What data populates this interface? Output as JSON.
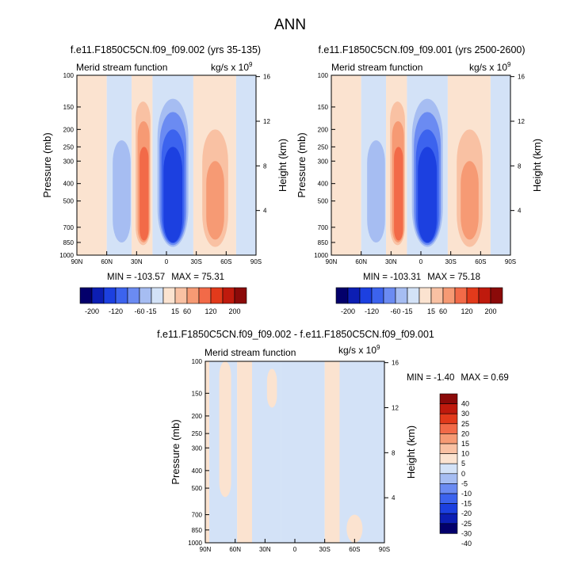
{
  "page_title": "ANN",
  "colors": {
    "below_zero": [
      "#03006b",
      "#0c1eb3",
      "#1c40e0",
      "#3c63ee",
      "#6b8bf2",
      "#a6bdf2",
      "#d3e2f7"
    ],
    "above_zero": [
      "#fbe3d0",
      "#f9c1a3",
      "#f69a74",
      "#f26a48",
      "#e23a1b",
      "#bf1a0d",
      "#8b0a09"
    ],
    "frame": "#000000"
  },
  "chart_data": [
    {
      "type": "heatmap",
      "variant": "contour",
      "title": "f.e11.F1850C5CN.f09_f09.002 (yrs 35-135)",
      "subtitle_left": "Merid stream function",
      "subtitle_right": "kg/s x 10",
      "units_exponent": "9",
      "xlabel": "",
      "ylabel": "Pressure (mb)",
      "ylabel_right": "Height (km)",
      "x_ticks": [
        "90N",
        "60N",
        "30N",
        "0",
        "30S",
        "60S",
        "90S"
      ],
      "x_range": [
        90,
        -90
      ],
      "y_ticks": [
        100,
        150,
        200,
        250,
        300,
        400,
        500,
        700,
        850,
        1000
      ],
      "y_range": [
        100,
        1000
      ],
      "y_scale": "log",
      "y_right_ticks": [
        4,
        8,
        12,
        16
      ],
      "stats": {
        "min_label": "MIN = -103.57",
        "max_label": "MAX = 75.31",
        "min": -103.57,
        "max": 75.31
      },
      "contour_levels": [
        -200,
        -160,
        -120,
        -80,
        -60,
        -40,
        -15,
        0,
        15,
        40,
        60,
        80,
        120,
        160,
        200
      ],
      "cells": [
        {
          "lat": [
            90,
            60
          ],
          "p": [
            100,
            1000
          ],
          "value": 5
        },
        {
          "lat": [
            60,
            35
          ],
          "p": [
            100,
            1000
          ],
          "value": -5
        },
        {
          "lat": [
            54,
            36
          ],
          "p": [
            230,
            850
          ],
          "value": -20
        },
        {
          "lat": [
            35,
            14
          ],
          "p": [
            100,
            1000
          ],
          "value": 5
        },
        {
          "lat": [
            31,
            16
          ],
          "p": [
            140,
            880
          ],
          "value": 20
        },
        {
          "lat": [
            29,
            17
          ],
          "p": [
            180,
            850
          ],
          "value": 50
        },
        {
          "lat": [
            27,
            18
          ],
          "p": [
            250,
            830
          ],
          "value": 70
        },
        {
          "lat": [
            14,
            -27
          ],
          "p": [
            100,
            1000
          ],
          "value": -5
        },
        {
          "lat": [
            9,
            -22
          ],
          "p": [
            135,
            900
          ],
          "value": -20
        },
        {
          "lat": [
            7,
            -20
          ],
          "p": [
            160,
            880
          ],
          "value": -50
        },
        {
          "lat": [
            5,
            -18
          ],
          "p": [
            200,
            860
          ],
          "value": -70
        },
        {
          "lat": [
            3,
            -16
          ],
          "p": [
            250,
            850
          ],
          "value": -90
        },
        {
          "lat": [
            1,
            -14
          ],
          "p": [
            560,
            850
          ],
          "value": -103
        },
        {
          "lat": [
            -27,
            -70
          ],
          "p": [
            100,
            1000
          ],
          "value": 5
        },
        {
          "lat": [
            -36,
            -62
          ],
          "p": [
            200,
            900
          ],
          "value": 20
        },
        {
          "lat": [
            -40,
            -58
          ],
          "p": [
            300,
            820
          ],
          "value": 40
        },
        {
          "lat": [
            -70,
            -90
          ],
          "p": [
            100,
            1000
          ],
          "value": -3
        }
      ]
    },
    {
      "type": "heatmap",
      "variant": "contour",
      "title": "f.e11.F1850C5CN.f09_f09.001 (yrs 2500-2600)",
      "subtitle_left": "Merid stream function",
      "subtitle_right": "kg/s x 10",
      "units_exponent": "9",
      "xlabel": "",
      "ylabel": "Pressure (mb)",
      "ylabel_right": "Height (km)",
      "x_ticks": [
        "90N",
        "60N",
        "30N",
        "0",
        "30S",
        "60S",
        "90S"
      ],
      "x_range": [
        90,
        -90
      ],
      "y_ticks": [
        100,
        150,
        200,
        250,
        300,
        400,
        500,
        700,
        850,
        1000
      ],
      "y_range": [
        100,
        1000
      ],
      "y_scale": "log",
      "y_right_ticks": [
        4,
        8,
        12,
        16
      ],
      "stats": {
        "min_label": "MIN = -103.31",
        "max_label": "MAX =  75.18",
        "min": -103.31,
        "max": 75.18
      },
      "contour_levels": [
        -200,
        -160,
        -120,
        -80,
        -60,
        -40,
        -15,
        0,
        15,
        40,
        60,
        80,
        120,
        160,
        200
      ],
      "cells": [
        {
          "lat": [
            90,
            60
          ],
          "p": [
            100,
            1000
          ],
          "value": 5
        },
        {
          "lat": [
            60,
            35
          ],
          "p": [
            100,
            1000
          ],
          "value": -5
        },
        {
          "lat": [
            54,
            36
          ],
          "p": [
            230,
            850
          ],
          "value": -20
        },
        {
          "lat": [
            35,
            14
          ],
          "p": [
            100,
            1000
          ],
          "value": 5
        },
        {
          "lat": [
            31,
            16
          ],
          "p": [
            140,
            880
          ],
          "value": 20
        },
        {
          "lat": [
            29,
            17
          ],
          "p": [
            180,
            850
          ],
          "value": 50
        },
        {
          "lat": [
            27,
            18
          ],
          "p": [
            250,
            830
          ],
          "value": 70
        },
        {
          "lat": [
            14,
            -27
          ],
          "p": [
            100,
            1000
          ],
          "value": -5
        },
        {
          "lat": [
            9,
            -22
          ],
          "p": [
            135,
            900
          ],
          "value": -20
        },
        {
          "lat": [
            7,
            -20
          ],
          "p": [
            160,
            880
          ],
          "value": -50
        },
        {
          "lat": [
            5,
            -18
          ],
          "p": [
            200,
            860
          ],
          "value": -70
        },
        {
          "lat": [
            3,
            -16
          ],
          "p": [
            250,
            850
          ],
          "value": -90
        },
        {
          "lat": [
            1,
            -14
          ],
          "p": [
            560,
            850
          ],
          "value": -103
        },
        {
          "lat": [
            -27,
            -70
          ],
          "p": [
            100,
            1000
          ],
          "value": 5
        },
        {
          "lat": [
            -36,
            -62
          ],
          "p": [
            200,
            900
          ],
          "value": 20
        },
        {
          "lat": [
            -40,
            -58
          ],
          "p": [
            300,
            820
          ],
          "value": 40
        },
        {
          "lat": [
            -70,
            -90
          ],
          "p": [
            100,
            1000
          ],
          "value": -3
        }
      ]
    },
    {
      "type": "heatmap",
      "variant": "contour",
      "title": "f.e11.F1850C5CN.f09_f09.002 - f.e11.F1850C5CN.f09_f09.001",
      "subtitle_left": "Merid stream function",
      "subtitle_right": "kg/s x 10",
      "units_exponent": "9",
      "xlabel": "",
      "ylabel": "Pressure (mb)",
      "ylabel_right": "Height (km)",
      "x_ticks": [
        "90N",
        "60N",
        "30N",
        "0",
        "30S",
        "60S",
        "90S"
      ],
      "x_range": [
        90,
        -90
      ],
      "y_ticks": [
        100,
        150,
        200,
        250,
        300,
        400,
        500,
        700,
        850,
        1000
      ],
      "y_range": [
        100,
        1000
      ],
      "y_scale": "log",
      "y_right_ticks": [
        4,
        8,
        12,
        16
      ],
      "stats": {
        "min_label": "MIN =  -1.40",
        "max_label": "MAX =   0.69",
        "min": -1.4,
        "max": 0.69
      },
      "contour_levels": [
        -40,
        -30,
        -25,
        -20,
        -15,
        -10,
        -5,
        0,
        5,
        10,
        15,
        20,
        25,
        30,
        40
      ],
      "cells": [
        {
          "lat": [
            90,
            86
          ],
          "p": [
            100,
            1000
          ],
          "value": 1
        },
        {
          "lat": [
            86,
            58
          ],
          "p": [
            100,
            1000
          ],
          "value": -1
        },
        {
          "lat": [
            76,
            64
          ],
          "p": [
            100,
            560
          ],
          "value": 1
        },
        {
          "lat": [
            58,
            43
          ],
          "p": [
            100,
            1000
          ],
          "value": 1
        },
        {
          "lat": [
            43,
            14
          ],
          "p": [
            100,
            1000
          ],
          "value": -1
        },
        {
          "lat": [
            28,
            18
          ],
          "p": [
            110,
            180
          ],
          "value": 1
        },
        {
          "lat": [
            14,
            -30
          ],
          "p": [
            100,
            1000
          ],
          "value": -1
        },
        {
          "lat": [
            -30,
            -45
          ],
          "p": [
            100,
            1000
          ],
          "value": 1
        },
        {
          "lat": [
            -45,
            -90
          ],
          "p": [
            100,
            1000
          ],
          "value": -1
        },
        {
          "lat": [
            -52,
            -68
          ],
          "p": [
            700,
            1000
          ],
          "value": 1
        }
      ]
    }
  ],
  "colorbar_horizontal": {
    "labels": [
      "-200",
      "-120",
      "-60",
      "-15",
      "15",
      "60",
      "120",
      "200"
    ]
  },
  "colorbar_vertical": {
    "labels": [
      "40",
      "30",
      "25",
      "20",
      "15",
      "10",
      "5",
      "0",
      "-5",
      "-10",
      "-15",
      "-20",
      "-25",
      "-30",
      "-40"
    ]
  }
}
